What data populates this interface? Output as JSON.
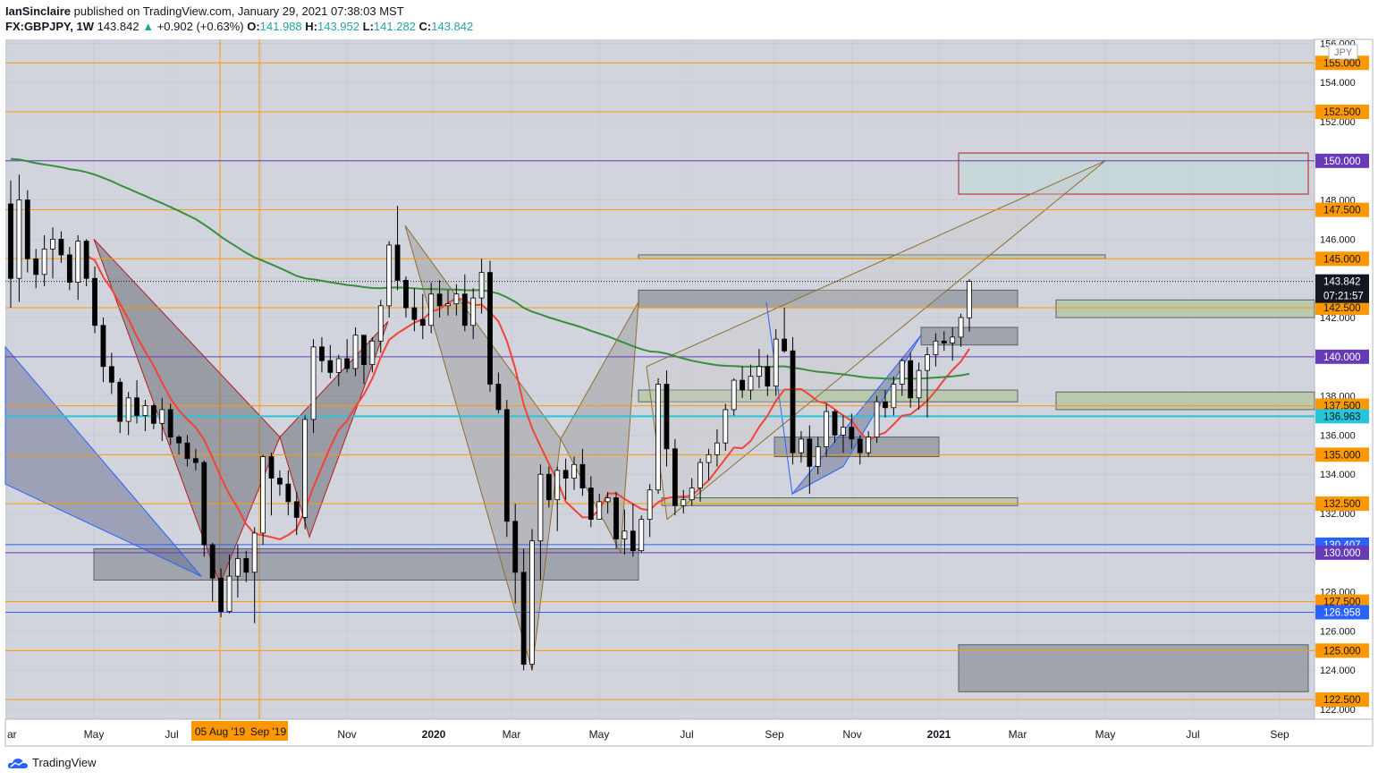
{
  "header": {
    "publisher": "IanSinclaire",
    "published_text": "published on TradingView.com, January 29, 2021 07:38:03 MST",
    "symbol": "FX:GBPJPY, 1W",
    "last": "143.842",
    "change_arrow": "▲",
    "change": "+0.902 (+0.63%)",
    "o_label": "O:",
    "o": "141.988",
    "h_label": "H:",
    "h": "143.952",
    "l_label": "L:",
    "l": "141.282",
    "c_label": "C:",
    "c": "143.842"
  },
  "footer": {
    "brand": "TradingView"
  },
  "currency_label": "JPY",
  "colors": {
    "plot_bg": "#d1d4dc",
    "orange_line": "#ff9800",
    "purple_line": "#673ab7",
    "blue_line": "#2962ff",
    "cyan_line": "#26c6da",
    "ma_green": "#388e3c",
    "ma_red": "#f44336",
    "candle_up": "#ffffff",
    "candle_down": "#000000",
    "price_tag_orange": "#ff9800",
    "price_tag_purple": "#673ab7",
    "price_tag_blue": "#2962ff",
    "price_tag_cyan": "#26c6da",
    "price_tag_dark": "#131722"
  },
  "chart_data": {
    "type": "candlestick",
    "instrument": "FX:GBPJPY",
    "timeframe": "1W",
    "y_axis_ticks": [
      "156.000",
      "154.000",
      "152.000",
      "150.000",
      "148.000",
      "146.000",
      "144.000",
      "142.000",
      "140.000",
      "138.000",
      "136.000",
      "134.000",
      "132.000",
      "130.000",
      "128.000",
      "126.000",
      "124.000",
      "122.000"
    ],
    "x_axis_ticks": [
      "ar",
      "May",
      "Jul",
      "Sep",
      "Nov",
      "2020",
      "Mar",
      "May",
      "Jul",
      "Sep",
      "Nov",
      "2021",
      "Mar",
      "May",
      "Jul",
      "Sep"
    ],
    "crosshair_labels": [
      "05 Aug '19",
      "Sep '19"
    ],
    "ylim": [
      121.5,
      156.2
    ],
    "price_levels": [
      {
        "value": 155.0,
        "label": "155.000",
        "kind": "orange"
      },
      {
        "value": 152.5,
        "label": "152.500",
        "kind": "orange"
      },
      {
        "value": 150.0,
        "label": "150.000",
        "kind": "purple"
      },
      {
        "value": 147.5,
        "label": "147.500",
        "kind": "orange"
      },
      {
        "value": 145.0,
        "label": "145.000",
        "kind": "orange"
      },
      {
        "value": 142.5,
        "label": "142.500",
        "kind": "orange"
      },
      {
        "value": 140.0,
        "label": "140.000",
        "kind": "purple"
      },
      {
        "value": 137.5,
        "label": "137.500",
        "kind": "orange"
      },
      {
        "value": 136.963,
        "label": "136.963",
        "kind": "cyan"
      },
      {
        "value": 135.0,
        "label": "135.000",
        "kind": "orange"
      },
      {
        "value": 132.5,
        "label": "132.500",
        "kind": "orange"
      },
      {
        "value": 130.407,
        "label": "130.407",
        "kind": "blue"
      },
      {
        "value": 130.0,
        "label": "130.000",
        "kind": "purple"
      },
      {
        "value": 127.5,
        "label": "127.500",
        "kind": "orange"
      },
      {
        "value": 126.958,
        "label": "126.958",
        "kind": "blue"
      },
      {
        "value": 125.0,
        "label": "125.000",
        "kind": "orange"
      },
      {
        "value": 122.5,
        "label": "122.500",
        "kind": "orange"
      }
    ],
    "last_price": {
      "value": 143.842,
      "label": "143.842"
    },
    "countdown": "07:21:57",
    "candles": [
      [
        147.8,
        149.0,
        142.5,
        144.0
      ],
      [
        144.0,
        149.3,
        142.8,
        148.0
      ],
      [
        148.0,
        148.5,
        144.3,
        145.0
      ],
      [
        145.0,
        145.5,
        143.5,
        144.2
      ],
      [
        144.2,
        146.2,
        143.6,
        145.5
      ],
      [
        145.5,
        146.6,
        144.0,
        146.0
      ],
      [
        146.0,
        146.4,
        144.8,
        145.2
      ],
      [
        145.2,
        145.6,
        143.4,
        143.8
      ],
      [
        143.8,
        146.2,
        142.9,
        145.9
      ],
      [
        145.9,
        146.0,
        143.6,
        144.0
      ],
      [
        144.0,
        144.6,
        141.2,
        141.6
      ],
      [
        141.6,
        142.0,
        138.7,
        139.5
      ],
      [
        139.5,
        140.2,
        138.1,
        138.7
      ],
      [
        138.7,
        138.9,
        136.1,
        136.7
      ],
      [
        136.7,
        138.2,
        136.0,
        137.9
      ],
      [
        137.9,
        138.8,
        136.6,
        137.0
      ],
      [
        137.0,
        137.8,
        136.2,
        137.5
      ],
      [
        137.5,
        137.6,
        136.3,
        136.6
      ],
      [
        136.6,
        137.9,
        135.7,
        137.3
      ],
      [
        137.3,
        137.6,
        135.5,
        135.9
      ],
      [
        135.9,
        136.0,
        135.0,
        135.6
      ],
      [
        135.6,
        136.0,
        134.4,
        134.8
      ],
      [
        134.8,
        135.3,
        134.2,
        134.6
      ],
      [
        134.6,
        134.7,
        129.8,
        130.4
      ],
      [
        130.4,
        130.5,
        127.5,
        128.7
      ],
      [
        128.7,
        129.2,
        126.7,
        127.0
      ],
      [
        127.0,
        129.9,
        126.9,
        128.8
      ],
      [
        128.8,
        130.4,
        127.7,
        129.7
      ],
      [
        129.7,
        130.1,
        128.5,
        129.0
      ],
      [
        129.0,
        131.3,
        126.4,
        131.0
      ],
      [
        131.0,
        135.0,
        130.4,
        134.9
      ],
      [
        134.9,
        135.1,
        131.9,
        133.8
      ],
      [
        133.8,
        134.2,
        132.9,
        133.5
      ],
      [
        133.5,
        134.2,
        131.9,
        132.6
      ],
      [
        132.6,
        133.1,
        130.9,
        131.8
      ],
      [
        131.8,
        137.0,
        131.2,
        136.8
      ],
      [
        136.8,
        140.9,
        136.1,
        140.5
      ],
      [
        140.5,
        141.0,
        139.2,
        139.8
      ],
      [
        139.8,
        140.6,
        138.9,
        139.2
      ],
      [
        139.2,
        140.1,
        138.5,
        139.9
      ],
      [
        139.9,
        140.9,
        139.2,
        139.4
      ],
      [
        139.4,
        141.5,
        139.0,
        141.1
      ],
      [
        141.1,
        141.1,
        138.6,
        139.6
      ],
      [
        139.6,
        141.0,
        139.2,
        140.8
      ],
      [
        140.8,
        142.9,
        140.2,
        142.6
      ],
      [
        142.6,
        145.9,
        142.0,
        145.7
      ],
      [
        145.7,
        147.7,
        143.4,
        143.9
      ],
      [
        143.9,
        144.1,
        142.0,
        142.5
      ],
      [
        142.5,
        143.5,
        141.3,
        141.9
      ],
      [
        141.9,
        143.2,
        140.9,
        141.6
      ],
      [
        141.6,
        143.8,
        141.2,
        143.2
      ],
      [
        143.2,
        143.9,
        142.0,
        142.6
      ],
      [
        142.6,
        143.4,
        142.1,
        142.7
      ],
      [
        142.7,
        143.7,
        142.1,
        143.2
      ],
      [
        143.2,
        144.2,
        141.3,
        141.6
      ],
      [
        141.6,
        143.5,
        140.9,
        143.0
      ],
      [
        143.0,
        145.0,
        142.2,
        144.3
      ],
      [
        144.3,
        144.9,
        138.2,
        138.6
      ],
      [
        138.6,
        139.2,
        137.1,
        137.3
      ],
      [
        137.3,
        137.8,
        130.8,
        131.6
      ],
      [
        131.6,
        132.5,
        127.4,
        129.0
      ],
      [
        129.0,
        130.2,
        124.0,
        124.3
      ],
      [
        124.3,
        131.2,
        124.0,
        130.6
      ],
      [
        130.6,
        134.5,
        128.6,
        134.0
      ],
      [
        134.0,
        134.4,
        132.3,
        132.7
      ],
      [
        132.7,
        134.4,
        131.1,
        134.2
      ],
      [
        134.2,
        134.8,
        132.7,
        133.8
      ],
      [
        133.8,
        134.9,
        133.2,
        134.5
      ],
      [
        134.5,
        135.3,
        132.9,
        133.3
      ],
      [
        133.3,
        133.9,
        131.3,
        131.7
      ],
      [
        131.7,
        133.0,
        132.0,
        132.6
      ],
      [
        132.6,
        133.1,
        132.0,
        132.8
      ],
      [
        132.8,
        133.1,
        130.2,
        130.7
      ],
      [
        130.7,
        132.2,
        129.9,
        131.1
      ],
      [
        131.1,
        132.5,
        129.8,
        130.1
      ],
      [
        130.1,
        131.9,
        130.0,
        131.7
      ],
      [
        131.7,
        133.5,
        130.8,
        133.2
      ],
      [
        133.2,
        138.9,
        133.0,
        138.6
      ],
      [
        138.6,
        139.3,
        134.4,
        135.3
      ],
      [
        135.3,
        135.8,
        131.9,
        132.4
      ],
      [
        132.4,
        133.2,
        132.0,
        132.7
      ],
      [
        132.7,
        133.8,
        132.4,
        133.3
      ],
      [
        133.3,
        134.8,
        132.6,
        134.6
      ],
      [
        134.6,
        135.3,
        133.7,
        135.0
      ],
      [
        135.0,
        136.3,
        134.4,
        135.6
      ],
      [
        135.6,
        137.6,
        135.2,
        137.3
      ],
      [
        137.3,
        138.9,
        137.0,
        138.8
      ],
      [
        138.8,
        139.5,
        137.9,
        138.3
      ],
      [
        138.3,
        139.6,
        137.8,
        139.0
      ],
      [
        139.0,
        140.4,
        138.4,
        139.5
      ],
      [
        139.5,
        140.1,
        138.0,
        138.5
      ],
      [
        138.5,
        141.4,
        138.0,
        140.9
      ],
      [
        140.9,
        142.5,
        140.2,
        140.3
      ],
      [
        140.3,
        141.0,
        134.5,
        135.1
      ],
      [
        135.1,
        136.2,
        134.6,
        135.8
      ],
      [
        135.8,
        136.5,
        133.0,
        134.4
      ],
      [
        134.4,
        135.9,
        134.0,
        135.4
      ],
      [
        135.4,
        137.6,
        134.9,
        137.2
      ],
      [
        137.2,
        137.3,
        135.6,
        136.0
      ],
      [
        136.0,
        137.0,
        135.1,
        136.4
      ],
      [
        136.4,
        137.1,
        135.3,
        135.8
      ],
      [
        135.8,
        136.0,
        134.5,
        135.1
      ],
      [
        135.1,
        136.2,
        134.9,
        135.9
      ],
      [
        135.9,
        138.0,
        135.6,
        137.7
      ],
      [
        137.7,
        138.3,
        136.9,
        137.4
      ],
      [
        137.4,
        139.0,
        137.0,
        138.6
      ],
      [
        138.6,
        139.9,
        138.0,
        139.8
      ],
      [
        139.8,
        140.2,
        137.4,
        137.9
      ],
      [
        137.9,
        139.7,
        137.3,
        139.3
      ],
      [
        139.3,
        140.5,
        136.9,
        140.1
      ],
      [
        140.1,
        141.2,
        139.5,
        140.8
      ],
      [
        140.8,
        141.3,
        140.3,
        140.7
      ],
      [
        140.7,
        141.5,
        139.8,
        141.0
      ],
      [
        141.0,
        142.2,
        140.5,
        142.0
      ],
      [
        141.988,
        143.952,
        141.282,
        143.842
      ]
    ]
  }
}
